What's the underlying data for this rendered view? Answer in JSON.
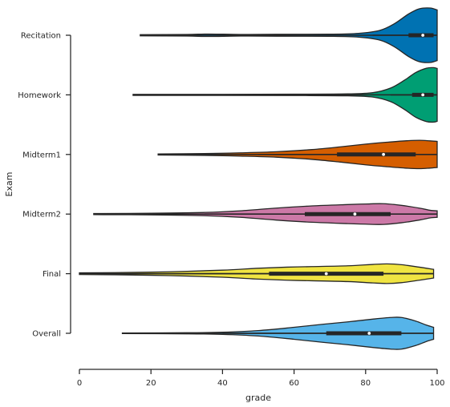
{
  "chart_data": {
    "type": "violin",
    "orientation": "horizontal",
    "title": "",
    "xlabel": "grade",
    "ylabel": "Exam",
    "xlim": [
      0,
      100
    ],
    "xticks": [
      0,
      20,
      40,
      60,
      80,
      100
    ],
    "grid": false,
    "series": [
      {
        "name": "Recitation",
        "color": "#0072b2",
        "min": 17,
        "q1": 92,
        "median": 96,
        "q3": 99,
        "whisker_low": 82,
        "max": 100,
        "density": [
          [
            17,
            0.02
          ],
          [
            30,
            0.03
          ],
          [
            36,
            0.045
          ],
          [
            45,
            0.03
          ],
          [
            55,
            0.035
          ],
          [
            70,
            0.04
          ],
          [
            78,
            0.07
          ],
          [
            84,
            0.18
          ],
          [
            88,
            0.42
          ],
          [
            92,
            0.78
          ],
          [
            95,
            0.97
          ],
          [
            98,
            1.0
          ],
          [
            100,
            0.93
          ]
        ]
      },
      {
        "name": "Homework",
        "color": "#009e73",
        "min": 15,
        "q1": 93,
        "median": 96,
        "q3": 99,
        "whisker_low": 87,
        "max": 100,
        "density": [
          [
            15,
            0.02
          ],
          [
            40,
            0.02
          ],
          [
            60,
            0.025
          ],
          [
            75,
            0.035
          ],
          [
            82,
            0.08
          ],
          [
            87,
            0.25
          ],
          [
            91,
            0.55
          ],
          [
            94,
            0.82
          ],
          [
            97,
            0.98
          ],
          [
            99,
            1.0
          ],
          [
            100,
            0.97
          ]
        ]
      },
      {
        "name": "Midterm1",
        "color": "#d55e00",
        "min": 22,
        "q1": 72,
        "median": 85,
        "q3": 94,
        "whisker_low": 50,
        "max": 100,
        "density": [
          [
            22,
            0.02
          ],
          [
            35,
            0.035
          ],
          [
            45,
            0.06
          ],
          [
            55,
            0.1
          ],
          [
            65,
            0.18
          ],
          [
            73,
            0.28
          ],
          [
            80,
            0.38
          ],
          [
            86,
            0.45
          ],
          [
            91,
            0.5
          ],
          [
            95,
            0.52
          ],
          [
            98,
            0.5
          ],
          [
            100,
            0.48
          ]
        ]
      },
      {
        "name": "Midterm2",
        "color": "#cc79a7",
        "min": 4,
        "q1": 63,
        "median": 77,
        "q3": 87,
        "whisker_low": 35,
        "max": 100,
        "density": [
          [
            4,
            0.02
          ],
          [
            20,
            0.03
          ],
          [
            35,
            0.06
          ],
          [
            45,
            0.12
          ],
          [
            55,
            0.22
          ],
          [
            65,
            0.3
          ],
          [
            75,
            0.35
          ],
          [
            80,
            0.37
          ],
          [
            85,
            0.38
          ],
          [
            90,
            0.32
          ],
          [
            95,
            0.22
          ],
          [
            98,
            0.14
          ],
          [
            100,
            0.12
          ]
        ]
      },
      {
        "name": "Final",
        "color": "#f0e442",
        "min": 0,
        "q1": 53,
        "median": 69,
        "q3": 85,
        "whisker_low": 5,
        "max": 99,
        "density": [
          [
            0,
            0.03
          ],
          [
            10,
            0.04
          ],
          [
            25,
            0.07
          ],
          [
            40,
            0.13
          ],
          [
            50,
            0.2
          ],
          [
            58,
            0.24
          ],
          [
            65,
            0.26
          ],
          [
            75,
            0.29
          ],
          [
            82,
            0.34
          ],
          [
            86,
            0.36
          ],
          [
            90,
            0.33
          ],
          [
            95,
            0.24
          ],
          [
            99,
            0.16
          ]
        ]
      },
      {
        "name": "Overall",
        "color": "#56b4e9",
        "min": 12,
        "q1": 69,
        "median": 81,
        "q3": 90,
        "whisker_low": 40,
        "max": 99,
        "density": [
          [
            12,
            0.01
          ],
          [
            30,
            0.02
          ],
          [
            40,
            0.04
          ],
          [
            50,
            0.1
          ],
          [
            60,
            0.22
          ],
          [
            68,
            0.33
          ],
          [
            75,
            0.42
          ],
          [
            82,
            0.52
          ],
          [
            87,
            0.58
          ],
          [
            90,
            0.58
          ],
          [
            94,
            0.45
          ],
          [
            97,
            0.3
          ],
          [
            99,
            0.22
          ]
        ]
      }
    ]
  }
}
